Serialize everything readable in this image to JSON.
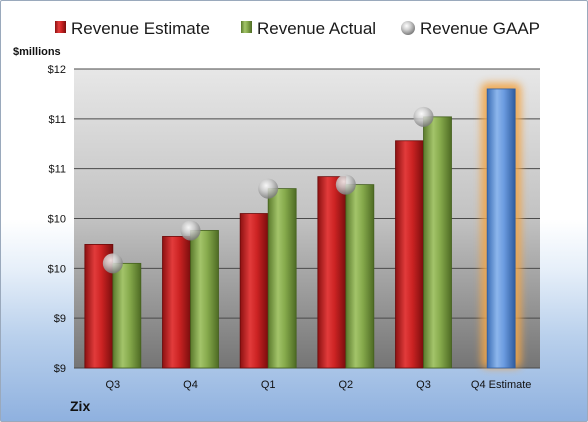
{
  "company": "Zix",
  "chart_data": {
    "type": "bar",
    "ylabel": "$millions",
    "ylim": [
      9,
      12
    ],
    "yticks": [
      {
        "value": 9.0,
        "label": "$9"
      },
      {
        "value": 9.5,
        "label": "$9"
      },
      {
        "value": 10.0,
        "label": "$10"
      },
      {
        "value": 10.5,
        "label": "$10"
      },
      {
        "value": 11.0,
        "label": "$11"
      },
      {
        "value": 11.5,
        "label": "$11"
      },
      {
        "value": 12.0,
        "label": "$12"
      }
    ],
    "categories": [
      "Q3",
      "Q4",
      "Q1",
      "Q2",
      "Q3",
      "Q4 Estimate"
    ],
    "legend_position": "top",
    "series": [
      {
        "name": "Revenue Estimate",
        "kind": "bar",
        "color": "#cc2222",
        "values": [
          10.24,
          10.32,
          10.55,
          10.92,
          11.28,
          null
        ]
      },
      {
        "name": "Revenue Actual",
        "kind": "bar",
        "color": "#84a84a",
        "values": [
          10.05,
          10.38,
          10.8,
          10.84,
          11.52,
          11.8
        ]
      },
      {
        "name": "Revenue GAAP",
        "kind": "marker",
        "color": "#b8b8b8",
        "values": [
          10.05,
          10.38,
          10.8,
          10.84,
          11.52,
          null
        ]
      }
    ],
    "highlight": {
      "category": "Q4 Estimate",
      "color": "#5b8fd6",
      "glow": "#f2a64a"
    }
  }
}
